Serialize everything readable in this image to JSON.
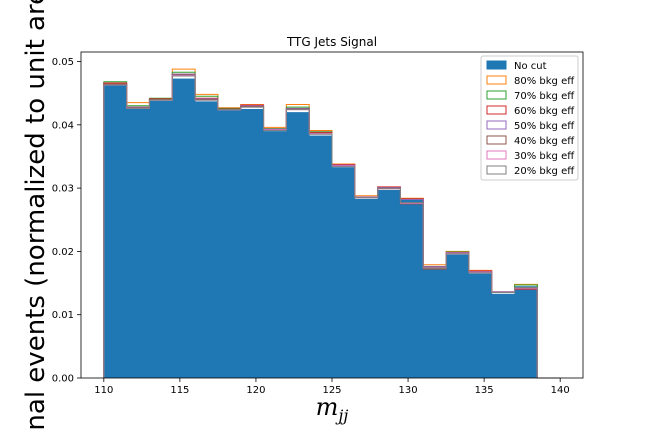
{
  "chart_data": {
    "type": "histogram",
    "title": "TTG Jets Signal",
    "xlabel": "m_jj",
    "xlabel_main": "m",
    "xlabel_sub": "jj",
    "ylabel": "gnal events (normalized to unit are",
    "xlim": [
      108.5,
      141.5
    ],
    "ylim": [
      0,
      0.0515
    ],
    "x_ticks": [
      110,
      115,
      120,
      125,
      130,
      135,
      140
    ],
    "y_ticks": [
      "0.00",
      "0.01",
      "0.02",
      "0.03",
      "0.04",
      "0.05"
    ],
    "y_tick_values": [
      0,
      0.01,
      0.02,
      0.03,
      0.04,
      0.05
    ],
    "bin_edges": [
      110,
      111.5,
      113,
      114.5,
      116,
      117.5,
      119,
      120.5,
      122,
      123.5,
      125,
      126.5,
      128,
      129.5,
      131,
      132.5,
      134,
      135.5,
      137,
      138.5,
      140
    ],
    "legend_position": "top-right",
    "series": [
      {
        "name": "No cut",
        "style": "filled",
        "color": "#1f77b4",
        "values": [
          0.0462,
          0.0425,
          0.0438,
          0.0473,
          0.0437,
          0.0423,
          0.0425,
          0.039,
          0.042,
          0.0383,
          0.0333,
          0.0283,
          0.0297,
          0.0282,
          0.0177,
          0.0195,
          0.0165,
          0.0133,
          0.0145,
          0.0
        ]
      },
      {
        "name": "80% bkg eff",
        "style": "step",
        "color": "#ff7f0e",
        "values": [
          0.0465,
          0.0435,
          0.044,
          0.0488,
          0.0448,
          0.0427,
          0.0432,
          0.0396,
          0.0432,
          0.0391,
          0.0338,
          0.0288,
          0.0301,
          0.0284,
          0.0179,
          0.02,
          0.017,
          0.0136,
          0.0148,
          0.0
        ]
      },
      {
        "name": "70% bkg eff",
        "style": "step",
        "color": "#2ca02c",
        "values": [
          0.0468,
          0.043,
          0.0442,
          0.0483,
          0.0445,
          0.0426,
          0.043,
          0.0394,
          0.0428,
          0.0389,
          0.0336,
          0.0286,
          0.03,
          0.0283,
          0.0173,
          0.0199,
          0.0168,
          0.0135,
          0.0147,
          0.0
        ]
      },
      {
        "name": "60% bkg eff",
        "style": "step",
        "color": "#d62728",
        "values": [
          0.0466,
          0.0428,
          0.0441,
          0.048,
          0.0442,
          0.0425,
          0.0431,
          0.0393,
          0.0425,
          0.0388,
          0.0337,
          0.0286,
          0.0302,
          0.0283,
          0.0176,
          0.0198,
          0.0169,
          0.0136,
          0.014,
          0.0
        ]
      },
      {
        "name": "50% bkg eff",
        "style": "step",
        "color": "#9467bd",
        "values": [
          0.0464,
          0.0428,
          0.044,
          0.048,
          0.0441,
          0.0424,
          0.043,
          0.0393,
          0.0426,
          0.0387,
          0.0336,
          0.0286,
          0.0301,
          0.0282,
          0.0176,
          0.0198,
          0.0168,
          0.0136,
          0.0141,
          0.0
        ]
      },
      {
        "name": "40% bkg eff",
        "style": "step",
        "color": "#8c564b",
        "values": [
          0.0464,
          0.0427,
          0.044,
          0.0479,
          0.044,
          0.0424,
          0.0429,
          0.0392,
          0.0425,
          0.0387,
          0.0335,
          0.0285,
          0.03,
          0.0275,
          0.0172,
          0.0197,
          0.0167,
          0.0135,
          0.0141,
          0.0
        ]
      },
      {
        "name": "30% bkg eff",
        "style": "step",
        "color": "#e377c2",
        "values": [
          0.0463,
          0.0426,
          0.0439,
          0.0478,
          0.0439,
          0.0424,
          0.0428,
          0.0392,
          0.0424,
          0.0386,
          0.0335,
          0.0285,
          0.0299,
          0.0276,
          0.0174,
          0.0197,
          0.0167,
          0.0135,
          0.0142,
          0.0
        ]
      },
      {
        "name": "20% bkg eff",
        "style": "step",
        "color": "#7f7f7f",
        "values": [
          0.0463,
          0.0426,
          0.0439,
          0.0477,
          0.0439,
          0.0424,
          0.0428,
          0.0391,
          0.0424,
          0.0385,
          0.0334,
          0.0285,
          0.0299,
          0.0277,
          0.0175,
          0.0196,
          0.0166,
          0.0135,
          0.0143,
          0.0
        ]
      }
    ]
  }
}
